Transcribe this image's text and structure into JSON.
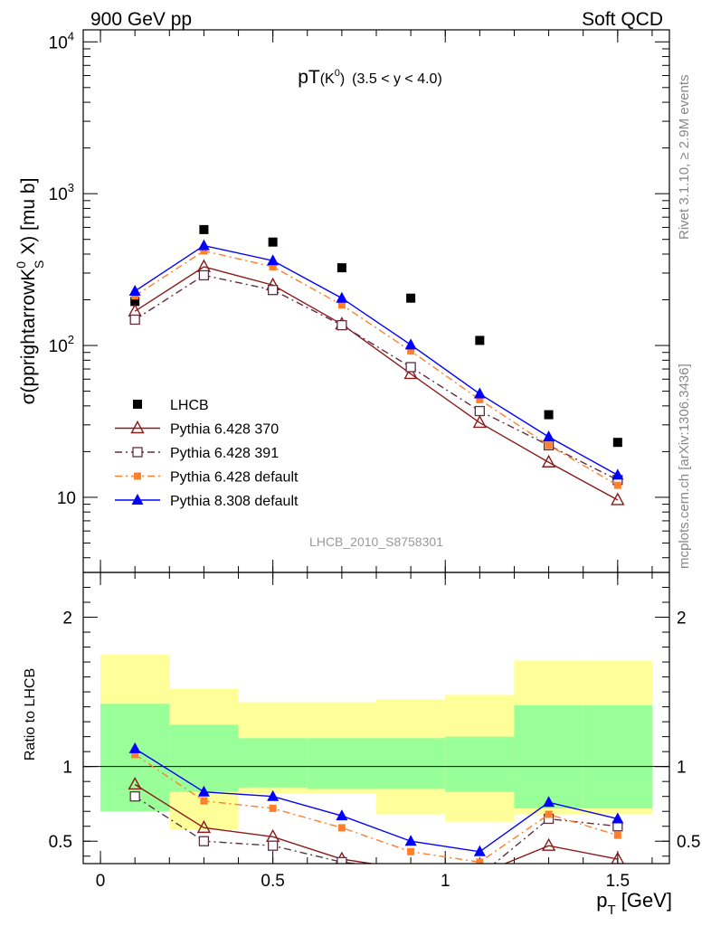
{
  "header": {
    "left": "900 GeV pp",
    "right": "Soft QCD"
  },
  "side": {
    "rivet": "Rivet 3.1.10, ≥ 2.9M events",
    "mcplots": "mcplots.cern.ch [arXiv:1306.3436]"
  },
  "chart_data": {
    "type": "line",
    "title_main": "pT",
    "title_particle": "(K",
    "title_sup": "0",
    "title_close": ")",
    "title_range": "(3.5 < y < 4.0)",
    "analysis_id": "LHCB_2010_S8758301",
    "ylabel_pre": "σ(pprightarrowK",
    "ylabel_sup": "0",
    "ylabel_sub": "S",
    "ylabel_post": " X) [mu b]",
    "ratio_ylabel": "Ratio to LHCB",
    "xlabel_main": "p",
    "xlabel_sub": "T",
    "xlabel_unit": " [GeV]",
    "yscale": "log",
    "ylim": [
      3.2,
      12000
    ],
    "xlim": [
      -0.05,
      1.65
    ],
    "ratio_ylim": [
      0.35,
      2.3
    ],
    "x_ticks": [
      {
        "v": 0,
        "label": "0"
      },
      {
        "v": 0.5,
        "label": "0.5"
      },
      {
        "v": 1,
        "label": "1"
      },
      {
        "v": 1.5,
        "label": "1.5"
      }
    ],
    "y_ticks": [
      {
        "v": 10,
        "label": "10"
      },
      {
        "v": 100,
        "label": "10",
        "sup": "2"
      },
      {
        "v": 1000,
        "label": "10",
        "sup": "3"
      },
      {
        "v": 10000,
        "label": "10",
        "sup": "4"
      }
    ],
    "ratio_ticks": [
      {
        "v": 0.5,
        "label": "0.5"
      },
      {
        "v": 1,
        "label": "1"
      },
      {
        "v": 2,
        "label": "2"
      }
    ],
    "x": [
      0.1,
      0.3,
      0.5,
      0.7,
      0.9,
      1.1,
      1.3,
      1.5
    ],
    "bins": [
      [
        0.0,
        0.2
      ],
      [
        0.2,
        0.4
      ],
      [
        0.4,
        0.6
      ],
      [
        0.6,
        0.8
      ],
      [
        0.8,
        1.0
      ],
      [
        1.0,
        1.2
      ],
      [
        1.2,
        1.4
      ],
      [
        1.4,
        1.6
      ]
    ],
    "band_outer": [
      [
        0.7,
        1.75
      ],
      [
        0.58,
        1.52
      ],
      [
        0.82,
        1.43
      ],
      [
        0.82,
        1.43
      ],
      [
        0.68,
        1.45
      ],
      [
        0.63,
        1.48
      ],
      [
        0.68,
        1.71
      ],
      [
        0.68,
        1.71
      ]
    ],
    "band_inner": [
      [
        0.7,
        1.42
      ],
      [
        0.83,
        1.28
      ],
      [
        0.86,
        1.19
      ],
      [
        0.85,
        1.19
      ],
      [
        0.85,
        1.19
      ],
      [
        0.83,
        1.2
      ],
      [
        0.72,
        1.41
      ],
      [
        0.72,
        1.41
      ]
    ],
    "band_colors": {
      "outer": "#ffff99",
      "inner": "#99ff99"
    },
    "series": [
      {
        "name": "LHCB",
        "color": "#000000",
        "marker": "square-filled",
        "dash": "none",
        "values": [
          195,
          580,
          480,
          325,
          205,
          108,
          35,
          23
        ],
        "ratio": [
          1,
          1,
          1,
          1,
          1,
          1,
          1,
          1
        ]
      },
      {
        "name": "Pythia 6.428 370",
        "color": "#8b1a1a",
        "marker": "triangle-open",
        "dash": "solid",
        "values": [
          168,
          330,
          250,
          138,
          65,
          31,
          17,
          9.6
        ],
        "ratio": [
          0.88,
          0.59,
          0.53,
          0.38,
          0.31,
          0.28,
          0.47,
          0.38
        ]
      },
      {
        "name": "Pythia 6.428 391",
        "color": "#5c3041",
        "marker": "square-open",
        "dash": "dashdot",
        "values": [
          148,
          290,
          232,
          136,
          72,
          37,
          22,
          13
        ],
        "ratio": [
          0.8,
          0.5,
          0.47,
          0.36,
          0.31,
          0.27,
          0.65,
          0.6
        ]
      },
      {
        "name": "Pythia 6.428 default",
        "color": "#ff7f2a",
        "marker": "square-filled-small",
        "dash": "dashdot",
        "values": [
          212,
          420,
          330,
          185,
          92,
          44,
          22,
          12
        ],
        "ratio": [
          1.08,
          0.77,
          0.72,
          0.59,
          0.43,
          0.36,
          0.68,
          0.54
        ]
      },
      {
        "name": "Pythia 8.308 default",
        "color": "#0000ff",
        "marker": "triangle-filled",
        "dash": "solid",
        "values": [
          228,
          455,
          362,
          205,
          101,
          48,
          25,
          14
        ],
        "ratio": [
          1.12,
          0.83,
          0.8,
          0.67,
          0.5,
          0.43,
          0.76,
          0.65
        ]
      }
    ]
  }
}
